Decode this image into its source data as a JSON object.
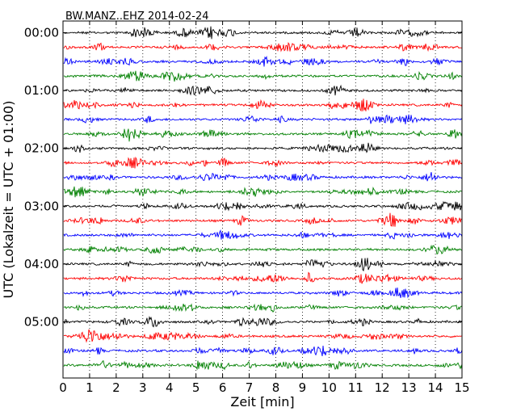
{
  "chart_data": {
    "type": "line",
    "title": "BW.MANZ..EHZ 2014-02-24",
    "xlabel": "Zeit  [min]",
    "ylabel": "UTC (Lokalzeit = UTC + 01:00)",
    "xlim": [
      0,
      15
    ],
    "x_ticks": [
      "0",
      "1",
      "2",
      "3",
      "4",
      "5",
      "6",
      "7",
      "8",
      "9",
      "10",
      "11",
      "12",
      "13",
      "14",
      "15"
    ],
    "y_tick_labels": [
      "00:00",
      "01:00",
      "02:00",
      "03:00",
      "04:00",
      "05:00"
    ],
    "trace_interval_min": 15,
    "trace_count": 24,
    "trace_colors": [
      "#000000",
      "#ff0000",
      "#0000ff",
      "#008000"
    ],
    "grid": "vertical dotted",
    "axes_color": "#000000"
  }
}
